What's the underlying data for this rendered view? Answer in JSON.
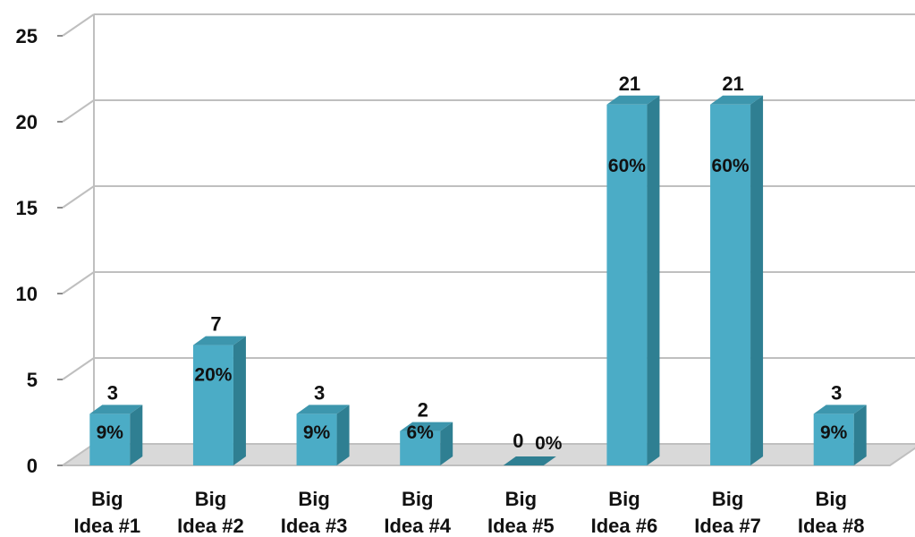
{
  "chart_data": {
    "type": "bar",
    "title": "",
    "xlabel": "",
    "ylabel": "",
    "ylim": [
      0,
      25
    ],
    "yticks": [
      0,
      5,
      10,
      15,
      20,
      25
    ],
    "grid": true,
    "legend": "none",
    "categories": [
      [
        "Big",
        "Idea #1"
      ],
      [
        "Big",
        "Idea #2"
      ],
      [
        "Big",
        "Idea #3"
      ],
      [
        "Big",
        "Idea #4"
      ],
      [
        "Big",
        "Idea #5"
      ],
      [
        "Big",
        "Idea #6"
      ],
      [
        "Big",
        "Idea #7"
      ],
      [
        "Big",
        "Idea #8"
      ]
    ],
    "values": [
      3,
      7,
      3,
      2,
      0,
      21,
      21,
      3
    ],
    "percent_labels": [
      "9%",
      "20%",
      "9%",
      "6%",
      "0%",
      "60%",
      "60%",
      "9%"
    ],
    "colors": {
      "bar_front": "#4bacc6",
      "bar_side": "#2f7f92",
      "bar_top": "#3d96ad",
      "grid": "#bfbfbf",
      "floor": "#d9d9d9"
    }
  }
}
